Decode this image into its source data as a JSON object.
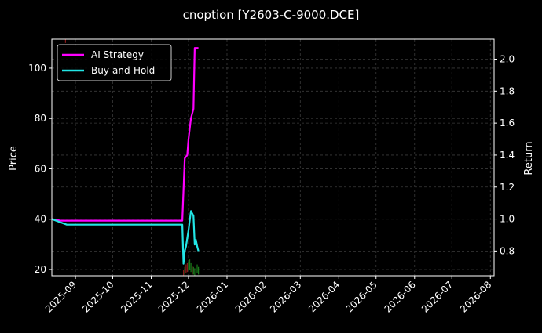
{
  "chart_data": {
    "type": "line",
    "title": "cnoption [Y2603-C-9000.DCE]",
    "ylabel_left": "Price",
    "ylabel_right": "Return",
    "ylim_left": [
      17.5,
      111.5
    ],
    "ylim_right": [
      0.645,
      2.125
    ],
    "xlim": [
      "2025-08-13",
      "2026-08-04"
    ],
    "left_ticks": [
      20,
      40,
      60,
      80,
      100
    ],
    "right_ticks": [
      0.8,
      1.0,
      1.2,
      1.4,
      1.6,
      1.8,
      2.0
    ],
    "x_ticks": [
      "2025-09",
      "2025-10",
      "2025-11",
      "2025-12",
      "2026-01",
      "2026-02",
      "2026-03",
      "2026-04",
      "2026-05",
      "2026-06",
      "2026-07",
      "2026-08"
    ],
    "grid": true,
    "legend_placement": "top-left",
    "colors": {
      "background": "#000000",
      "ai_strategy": "#ff00ff",
      "buy_and_hold": "#22e5e5",
      "grid": "#3a3a3a",
      "candle_up": "#1a7a1a",
      "candle_down": "#8a1a1a",
      "text": "#ffffff"
    },
    "series": [
      {
        "name": "AI Strategy",
        "axis": "right",
        "points": [
          [
            "2025-08-13",
            1.0
          ],
          [
            "2025-08-20",
            0.99
          ],
          [
            "2025-11-26",
            0.99
          ],
          [
            "2025-11-28",
            1.38
          ],
          [
            "2025-11-29",
            1.39
          ],
          [
            "2025-11-30",
            1.4
          ],
          [
            "2025-12-01",
            1.5
          ],
          [
            "2025-12-03",
            1.63
          ],
          [
            "2025-12-05",
            1.69
          ],
          [
            "2025-12-06",
            2.07
          ],
          [
            "2025-12-09",
            2.07
          ]
        ]
      },
      {
        "name": "Buy-and-Hold",
        "axis": "right",
        "points": [
          [
            "2025-08-13",
            1.0
          ],
          [
            "2025-08-25",
            0.965
          ],
          [
            "2025-11-26",
            0.965
          ],
          [
            "2025-11-27",
            0.72
          ],
          [
            "2025-11-28",
            0.8
          ],
          [
            "2025-11-29",
            0.83
          ],
          [
            "2025-12-01",
            0.93
          ],
          [
            "2025-12-03",
            1.05
          ],
          [
            "2025-12-05",
            1.02
          ],
          [
            "2025-12-06",
            0.84
          ],
          [
            "2025-12-07",
            0.87
          ],
          [
            "2025-12-08",
            0.83
          ],
          [
            "2025-12-09",
            0.8
          ]
        ]
      }
    ],
    "candles": [
      {
        "date": "2025-08-24",
        "high": 112,
        "low": 110,
        "up": false
      },
      {
        "date": "2025-11-27",
        "high": 20,
        "low": 17.5,
        "up": false
      },
      {
        "date": "2025-11-28",
        "high": 21,
        "low": 18,
        "up": true
      },
      {
        "date": "2025-11-29",
        "high": 22,
        "low": 18.5,
        "up": false
      },
      {
        "date": "2025-11-30",
        "high": 22.5,
        "low": 19,
        "up": false
      },
      {
        "date": "2025-12-01",
        "high": 23,
        "low": 19.5,
        "up": true
      },
      {
        "date": "2025-12-02",
        "high": 24,
        "low": 20,
        "up": true
      },
      {
        "date": "2025-12-03",
        "high": 22.5,
        "low": 19,
        "up": true
      },
      {
        "date": "2025-12-04",
        "high": 21.5,
        "low": 18,
        "up": false
      },
      {
        "date": "2025-12-05",
        "high": 21,
        "low": 18,
        "up": true
      },
      {
        "date": "2025-12-06",
        "high": 20.5,
        "low": 17.5,
        "up": true
      },
      {
        "date": "2025-12-08",
        "high": 22,
        "low": 18.5,
        "up": true
      },
      {
        "date": "2025-12-09",
        "high": 21,
        "low": 18,
        "up": true
      }
    ]
  }
}
